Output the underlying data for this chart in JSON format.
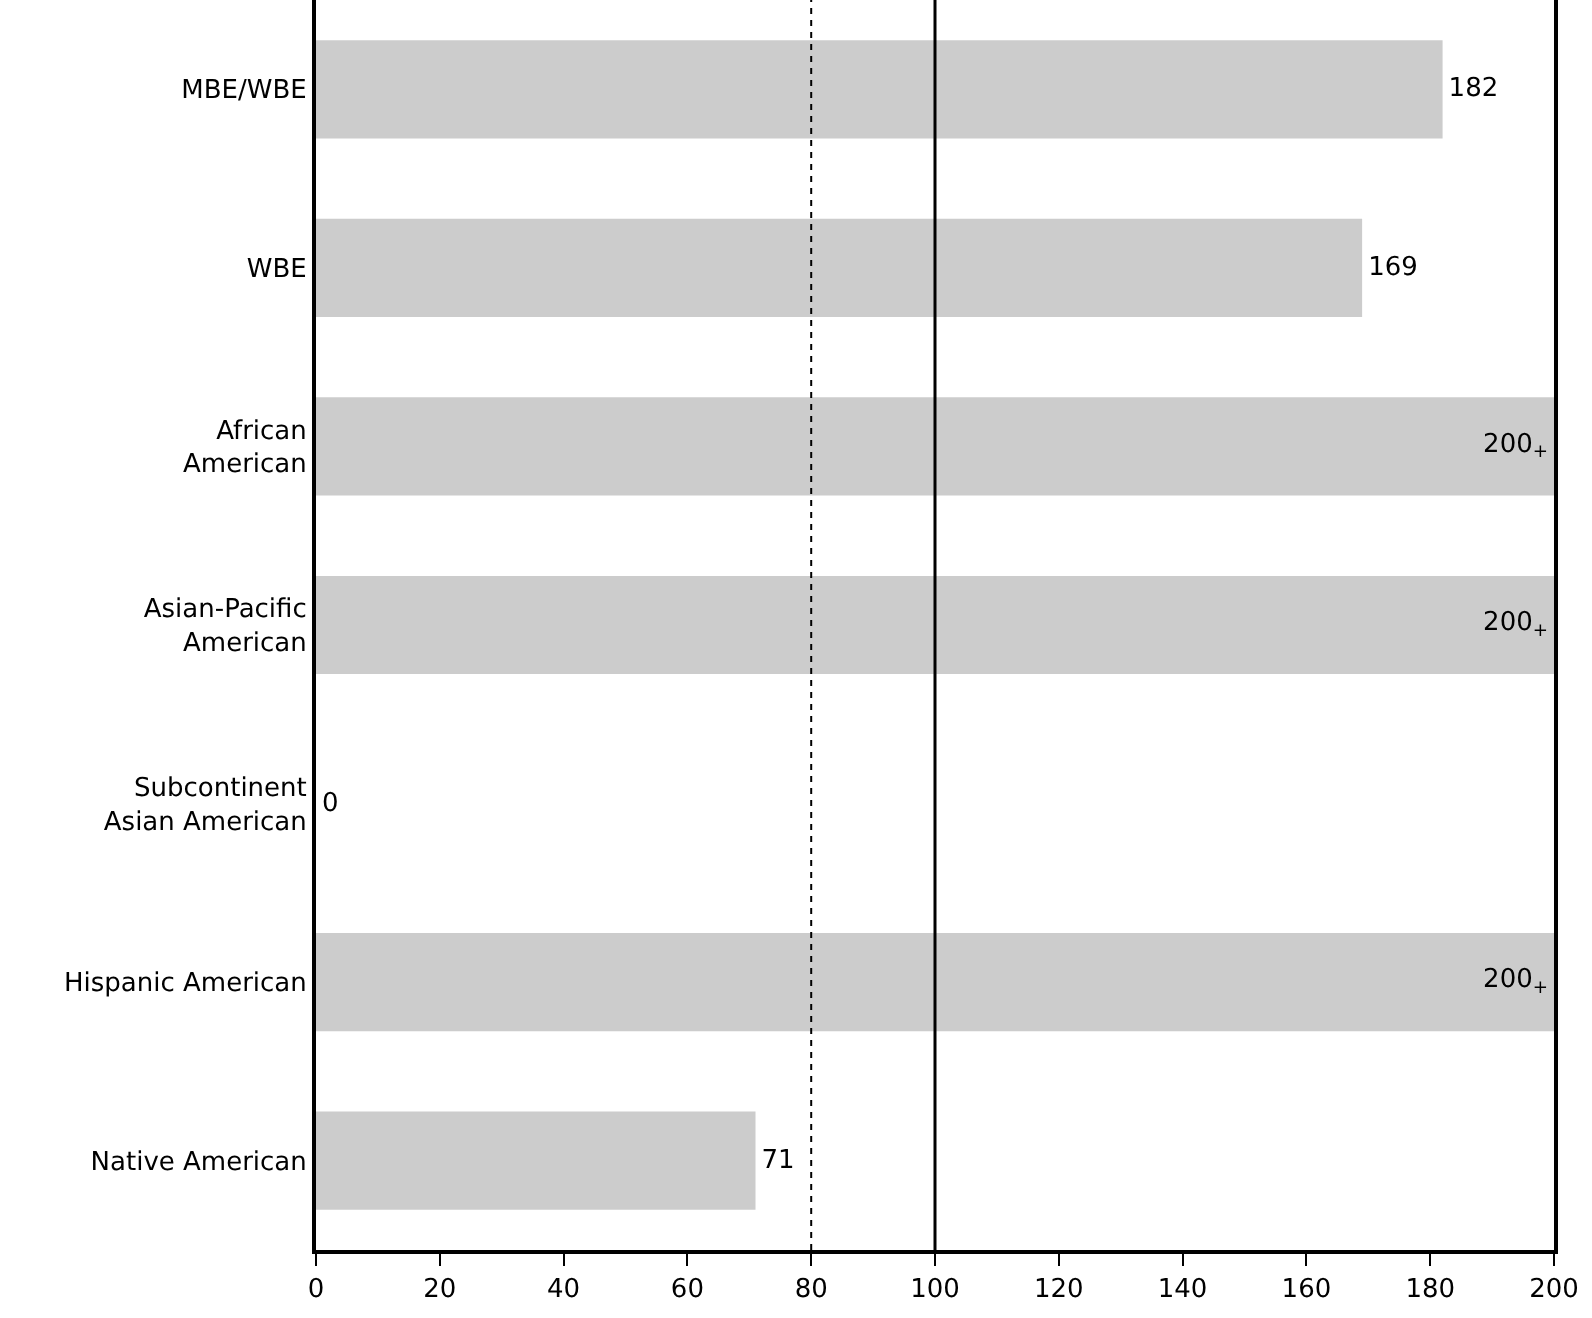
{
  "chart_data": {
    "type": "bar",
    "orientation": "horizontal",
    "categories": [
      "MBE/WBE",
      "WBE",
      "African\nAmerican",
      "Asian-Pacific\nAmerican",
      "Subcontinent\nAsian American",
      "Hispanic American",
      "Native American"
    ],
    "values": [
      182,
      169,
      200,
      200,
      0,
      200,
      71
    ],
    "value_labels": [
      "182",
      "169",
      "200$_{+}$",
      "200$_{+}$",
      "0",
      "200$_{+}$",
      "71"
    ],
    "color": "#cccccc",
    "xlim": [
      0,
      200
    ],
    "xticks": [
      0,
      20,
      40,
      60,
      80,
      100,
      120,
      140,
      160,
      180,
      200
    ],
    "ref_lines": [
      {
        "axis": "x",
        "value": 80,
        "color": "#000000",
        "line_style": "dotted"
      },
      {
        "axis": "x",
        "value": 100,
        "color": "#000000",
        "line_style": "solid"
      }
    ],
    "grid": false
  }
}
